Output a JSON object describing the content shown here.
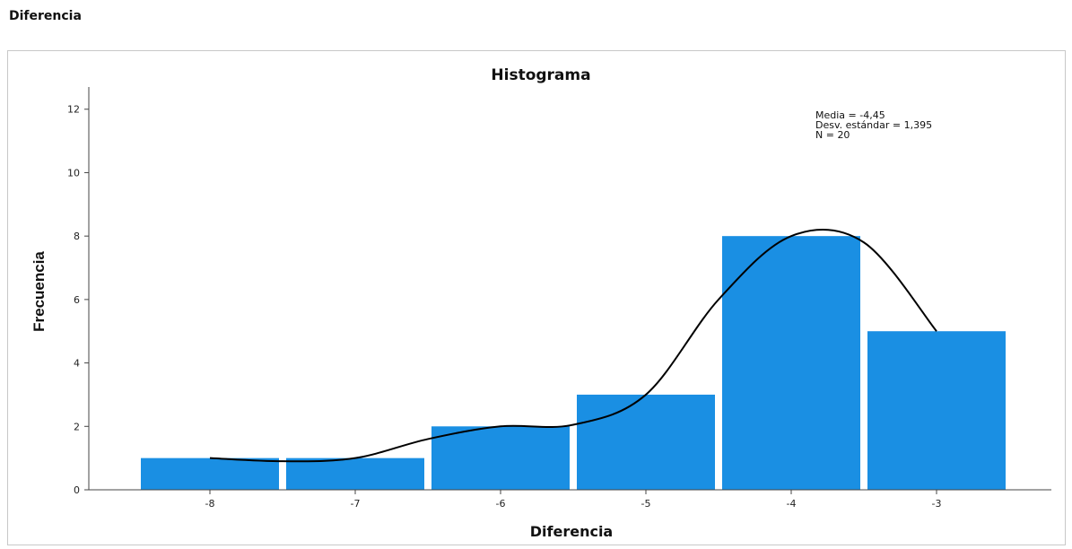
{
  "page": {
    "heading": "Diferencia"
  },
  "chart_data": {
    "type": "bar",
    "title": "Histograma",
    "xlabel": "Diferencia",
    "ylabel": "Frecuencia",
    "categories": [
      "-8",
      "-7",
      "-6",
      "-5",
      "-4",
      "-3"
    ],
    "values": [
      1,
      1,
      2,
      3,
      8,
      5
    ],
    "ylim": [
      0,
      12.7
    ],
    "yticks": [
      0,
      2,
      4,
      6,
      8,
      10,
      12
    ],
    "bar_color": "#1a8fe3",
    "grid": false,
    "curve": {
      "color": "#000000",
      "x": [
        -8,
        -7.5,
        -7,
        -6.5,
        -6,
        -5.5,
        -5,
        -4.5,
        -4,
        -3.5,
        -3
      ],
      "y": [
        1,
        0.9,
        1,
        1.6,
        2,
        2.05,
        3,
        6,
        8,
        7.8,
        5
      ]
    },
    "stats": {
      "mean": "Media = -4,45",
      "sd": "Desv. estándar = 1,395",
      "n": "N = 20"
    }
  }
}
